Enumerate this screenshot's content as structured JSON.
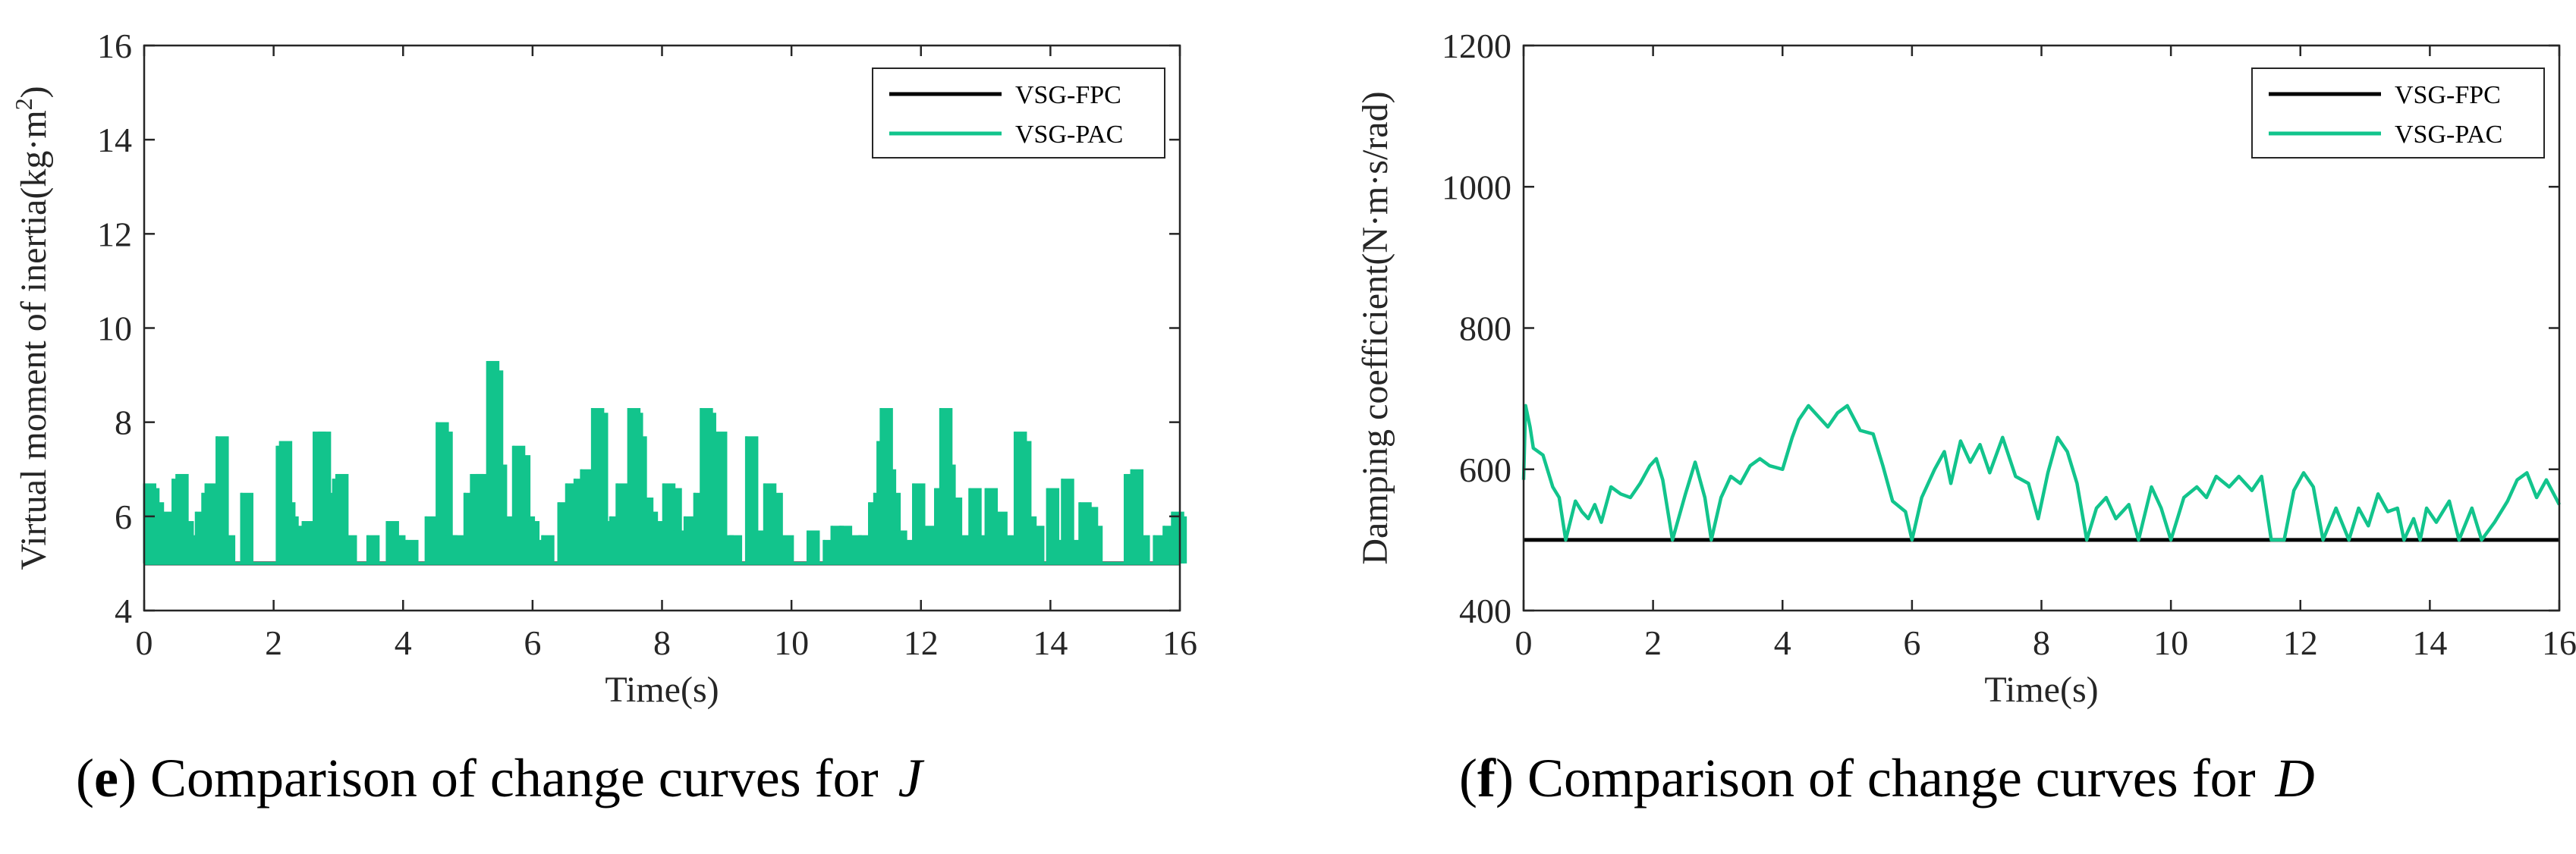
{
  "colors": {
    "fpc": "#000000",
    "pac": "#12c48c",
    "axis": "#262626"
  },
  "captions": [
    {
      "open": "(",
      "letter": "e",
      "close": ")",
      "text": " Comparison of change curves for",
      "symbol": "J"
    },
    {
      "open": "(",
      "letter": "f",
      "close": ")",
      "text": " Comparison of change curves for",
      "symbol": "D"
    }
  ],
  "chart_data": [
    {
      "type": "line",
      "title": "",
      "xlabel": "Time(s)",
      "ylabel": "Virtual moment of inertia(kg·m",
      "ylabel_sup": "2",
      "ylabel_close": ")",
      "xlim": [
        0,
        16
      ],
      "ylim": [
        4,
        16
      ],
      "xticks": [
        0,
        2,
        4,
        6,
        8,
        10,
        12,
        14,
        16
      ],
      "yticks": [
        4,
        6,
        8,
        10,
        12,
        14,
        16
      ],
      "grid": false,
      "legend": {
        "placement": "top-right",
        "entries": [
          "VSG-FPC",
          "VSG-PAC"
        ]
      },
      "series": [
        {
          "name": "VSG-FPC",
          "style": "constant",
          "values": [
            [
              0,
              5.0
            ],
            [
              16,
              5.0
            ]
          ]
        },
        {
          "name": "VSG-PAC",
          "style": "bursts",
          "base": 5.0,
          "values": [
            [
              0.0,
              6.7
            ],
            [
              0.05,
              6.6
            ],
            [
              0.12,
              6.3
            ],
            [
              0.2,
              5.6
            ],
            [
              0.28,
              6.1
            ],
            [
              0.36,
              6.0
            ],
            [
              0.44,
              6.8
            ],
            [
              0.5,
              6.9
            ],
            [
              0.58,
              5.9
            ],
            [
              0.72,
              5.6
            ],
            [
              0.8,
              6.1
            ],
            [
              0.9,
              6.5
            ],
            [
              0.95,
              6.7
            ],
            [
              1.03,
              5.8
            ],
            [
              1.12,
              7.7
            ],
            [
              1.22,
              5.6
            ],
            [
              1.5,
              6.5
            ],
            [
              2.05,
              7.5
            ],
            [
              2.1,
              7.6
            ],
            [
              2.15,
              6.3
            ],
            [
              2.2,
              6.0
            ],
            [
              2.3,
              5.8
            ],
            [
              2.45,
              5.9
            ],
            [
              2.62,
              7.8
            ],
            [
              2.7,
              7.8
            ],
            [
              2.78,
              6.5
            ],
            [
              2.85,
              5.8
            ],
            [
              2.92,
              6.8
            ],
            [
              2.97,
              6.9
            ],
            [
              3.1,
              5.6
            ],
            [
              3.45,
              5.6
            ],
            [
              3.75,
              5.9
            ],
            [
              3.85,
              5.6
            ],
            [
              4.05,
              5.5
            ],
            [
              4.35,
              6.0
            ],
            [
              4.45,
              5.9
            ],
            [
              4.52,
              8.0
            ],
            [
              4.58,
              7.8
            ],
            [
              4.65,
              5.6
            ],
            [
              4.75,
              5.6
            ],
            [
              4.95,
              6.5
            ],
            [
              5.05,
              6.9
            ],
            [
              5.12,
              6.9
            ],
            [
              5.22,
              5.5
            ],
            [
              5.3,
              9.3
            ],
            [
              5.36,
              9.1
            ],
            [
              5.42,
              7.1
            ],
            [
              5.5,
              6.0
            ],
            [
              5.58,
              5.5
            ],
            [
              5.7,
              7.5
            ],
            [
              5.78,
              7.3
            ],
            [
              5.85,
              6.0
            ],
            [
              5.92,
              5.9
            ],
            [
              6.0,
              5.5
            ],
            [
              6.15,
              5.6
            ],
            [
              6.4,
              6.3
            ],
            [
              6.52,
              6.7
            ],
            [
              6.65,
              6.8
            ],
            [
              6.75,
              7.0
            ],
            [
              6.82,
              5.5
            ],
            [
              6.92,
              8.3
            ],
            [
              6.98,
              8.2
            ],
            [
              7.1,
              5.9
            ],
            [
              7.2,
              6.0
            ],
            [
              7.3,
              6.7
            ],
            [
              7.38,
              6.4
            ],
            [
              7.48,
              8.3
            ],
            [
              7.52,
              8.2
            ],
            [
              7.58,
              7.7
            ],
            [
              7.68,
              6.4
            ],
            [
              7.75,
              6.1
            ],
            [
              7.85,
              5.9
            ],
            [
              8.02,
              6.7
            ],
            [
              8.12,
              6.6
            ],
            [
              8.18,
              5.7
            ],
            [
              8.35,
              6.0
            ],
            [
              8.5,
              6.5
            ],
            [
              8.6,
              8.3
            ],
            [
              8.65,
              8.2
            ],
            [
              8.72,
              7.3
            ],
            [
              8.82,
              7.8
            ],
            [
              8.92,
              5.6
            ],
            [
              9.05,
              5.6
            ],
            [
              9.3,
              7.7
            ],
            [
              9.42,
              5.7
            ],
            [
              9.58,
              6.7
            ],
            [
              9.68,
              6.5
            ],
            [
              9.85,
              5.6
            ],
            [
              10.25,
              5.7
            ],
            [
              10.5,
              5.5
            ],
            [
              10.62,
              5.8
            ],
            [
              10.75,
              5.8
            ],
            [
              10.9,
              5.6
            ],
            [
              11.05,
              5.6
            ],
            [
              11.2,
              6.3
            ],
            [
              11.28,
              6.5
            ],
            [
              11.33,
              7.6
            ],
            [
              11.38,
              8.3
            ],
            [
              11.43,
              7.0
            ],
            [
              11.5,
              6.5
            ],
            [
              11.6,
              5.7
            ],
            [
              11.72,
              5.5
            ],
            [
              11.88,
              6.7
            ],
            [
              12.02,
              5.8
            ],
            [
              12.22,
              6.6
            ],
            [
              12.3,
              8.3
            ],
            [
              12.35,
              7.1
            ],
            [
              12.45,
              6.4
            ],
            [
              12.6,
              5.6
            ],
            [
              12.75,
              6.6
            ],
            [
              12.88,
              5.6
            ],
            [
              13.0,
              6.6
            ],
            [
              13.15,
              6.1
            ],
            [
              13.25,
              5.6
            ],
            [
              13.45,
              7.8
            ],
            [
              13.52,
              7.6
            ],
            [
              13.6,
              6.0
            ],
            [
              13.72,
              5.8
            ],
            [
              13.95,
              6.6
            ],
            [
              14.05,
              5.5
            ],
            [
              14.18,
              6.8
            ],
            [
              14.28,
              5.5
            ],
            [
              14.45,
              6.3
            ],
            [
              14.55,
              6.2
            ],
            [
              14.62,
              5.8
            ],
            [
              15.15,
              6.9
            ],
            [
              15.25,
              7.0
            ],
            [
              15.35,
              5.6
            ],
            [
              15.6,
              5.6
            ],
            [
              15.75,
              5.8
            ],
            [
              15.88,
              6.1
            ],
            [
              15.92,
              6.0
            ]
          ]
        }
      ]
    },
    {
      "type": "line",
      "title": "",
      "xlabel": "Time(s)",
      "ylabel": "Damping coefficient(N·m·s/rad)",
      "xlim": [
        0,
        16
      ],
      "ylim": [
        400,
        1200
      ],
      "xticks": [
        0,
        2,
        4,
        6,
        8,
        10,
        12,
        14,
        16
      ],
      "yticks": [
        400,
        600,
        800,
        1000,
        1200
      ],
      "grid": false,
      "legend": {
        "placement": "top-right",
        "entries": [
          "VSG-FPC",
          "VSG-PAC"
        ]
      },
      "series": [
        {
          "name": "VSG-FPC",
          "values": [
            [
              0,
              500
            ],
            [
              16,
              500
            ]
          ]
        },
        {
          "name": "VSG-PAC",
          "values": [
            [
              0.0,
              585
            ],
            [
              0.03,
              690
            ],
            [
              0.1,
              660
            ],
            [
              0.15,
              630
            ],
            [
              0.3,
              620
            ],
            [
              0.45,
              575
            ],
            [
              0.55,
              560
            ],
            [
              0.65,
              500
            ],
            [
              0.8,
              555
            ],
            [
              0.9,
              540
            ],
            [
              1.0,
              530
            ],
            [
              1.1,
              550
            ],
            [
              1.2,
              525
            ],
            [
              1.35,
              575
            ],
            [
              1.5,
              565
            ],
            [
              1.65,
              560
            ],
            [
              1.8,
              580
            ],
            [
              1.95,
              605
            ],
            [
              2.05,
              615
            ],
            [
              2.15,
              585
            ],
            [
              2.3,
              500
            ],
            [
              2.5,
              565
            ],
            [
              2.65,
              610
            ],
            [
              2.8,
              560
            ],
            [
              2.9,
              500
            ],
            [
              3.05,
              560
            ],
            [
              3.2,
              590
            ],
            [
              3.35,
              580
            ],
            [
              3.5,
              605
            ],
            [
              3.65,
              615
            ],
            [
              3.8,
              605
            ],
            [
              4.0,
              600
            ],
            [
              4.15,
              645
            ],
            [
              4.25,
              670
            ],
            [
              4.4,
              690
            ],
            [
              4.55,
              675
            ],
            [
              4.7,
              660
            ],
            [
              4.85,
              680
            ],
            [
              5.0,
              690
            ],
            [
              5.2,
              655
            ],
            [
              5.4,
              650
            ],
            [
              5.55,
              605
            ],
            [
              5.7,
              555
            ],
            [
              5.9,
              540
            ],
            [
              6.0,
              500
            ],
            [
              6.15,
              560
            ],
            [
              6.35,
              600
            ],
            [
              6.5,
              625
            ],
            [
              6.6,
              580
            ],
            [
              6.75,
              640
            ],
            [
              6.9,
              610
            ],
            [
              7.05,
              635
            ],
            [
              7.2,
              595
            ],
            [
              7.4,
              645
            ],
            [
              7.6,
              590
            ],
            [
              7.8,
              580
            ],
            [
              7.95,
              530
            ],
            [
              8.1,
              595
            ],
            [
              8.25,
              645
            ],
            [
              8.4,
              625
            ],
            [
              8.55,
              580
            ],
            [
              8.7,
              500
            ],
            [
              8.85,
              545
            ],
            [
              9.0,
              560
            ],
            [
              9.15,
              530
            ],
            [
              9.35,
              550
            ],
            [
              9.5,
              500
            ],
            [
              9.7,
              575
            ],
            [
              9.85,
              545
            ],
            [
              10.0,
              500
            ],
            [
              10.2,
              560
            ],
            [
              10.4,
              575
            ],
            [
              10.55,
              560
            ],
            [
              10.7,
              590
            ],
            [
              10.9,
              575
            ],
            [
              11.05,
              590
            ],
            [
              11.25,
              570
            ],
            [
              11.4,
              590
            ],
            [
              11.55,
              500
            ],
            [
              11.75,
              500
            ],
            [
              11.9,
              570
            ],
            [
              12.05,
              595
            ],
            [
              12.2,
              575
            ],
            [
              12.35,
              500
            ],
            [
              12.55,
              545
            ],
            [
              12.75,
              500
            ],
            [
              12.9,
              545
            ],
            [
              13.05,
              520
            ],
            [
              13.2,
              565
            ],
            [
              13.35,
              540
            ],
            [
              13.5,
              545
            ],
            [
              13.6,
              500
            ],
            [
              13.75,
              530
            ],
            [
              13.85,
              500
            ],
            [
              13.95,
              545
            ],
            [
              14.1,
              525
            ],
            [
              14.3,
              555
            ],
            [
              14.45,
              500
            ],
            [
              14.65,
              545
            ],
            [
              14.8,
              500
            ],
            [
              15.0,
              525
            ],
            [
              15.2,
              555
            ],
            [
              15.35,
              585
            ],
            [
              15.5,
              595
            ],
            [
              15.65,
              560
            ],
            [
              15.8,
              585
            ],
            [
              16.0,
              550
            ]
          ]
        }
      ]
    }
  ]
}
